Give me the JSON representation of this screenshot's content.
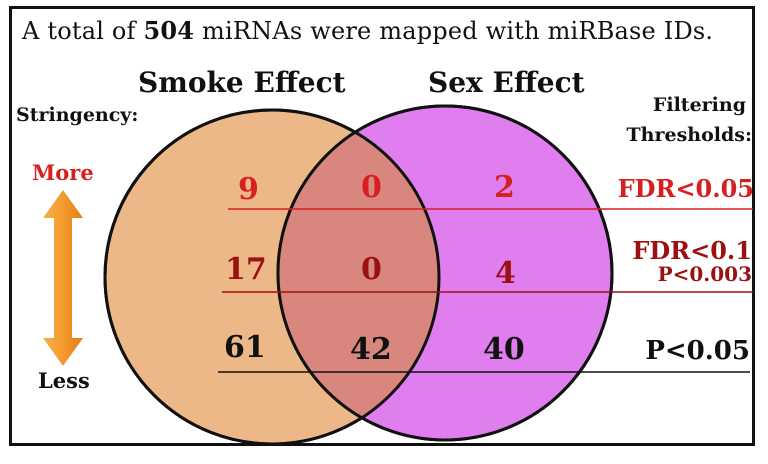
{
  "headline": {
    "prefix": "A total of ",
    "count": "504",
    "suffix": " miRNAs were mapped with miRBase IDs."
  },
  "sets": {
    "left": {
      "title": "Smoke Effect",
      "color": "#edb888"
    },
    "right": {
      "title": "Sex Effect",
      "color": "#e07ef0"
    },
    "overlap_color": "#d9877e"
  },
  "stringency": {
    "label": "Stringency:",
    "more": "More",
    "less": "Less",
    "arrow_color": "#f39a2e"
  },
  "filtering": {
    "label_line1": "Filtering",
    "label_line2": "Thresholds:"
  },
  "rows": [
    {
      "threshold": "FDR<0.05",
      "threshold2": "",
      "smoke_only": "9",
      "overlap": "0",
      "sex_only": "2",
      "color": "#d81f1f"
    },
    {
      "threshold": "FDR<0.1",
      "threshold2": "P<0.003",
      "smoke_only": "17",
      "overlap": "0",
      "sex_only": "4",
      "color": "#9b1010"
    },
    {
      "threshold": "P<0.05",
      "threshold2": "",
      "smoke_only": "61",
      "overlap": "42",
      "sex_only": "40",
      "color": "#111111"
    }
  ]
}
